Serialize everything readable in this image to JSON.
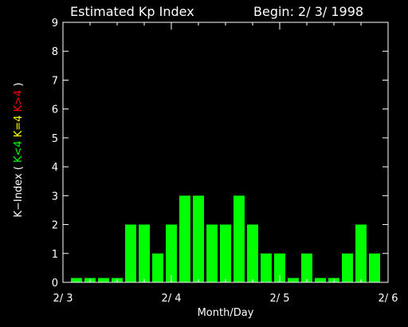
{
  "chart_data": {
    "type": "bar",
    "title": "Estimated Kp Index",
    "begin_label": "Begin: 2/ 3/ 1998",
    "xlabel": "Month/Day",
    "ylabel_parts": [
      {
        "text": "K−Index ( ",
        "color": "#ffffff"
      },
      {
        "text": "K<4 ",
        "color": "#00ff00"
      },
      {
        "text": "K=4 ",
        "color": "#ffff00"
      },
      {
        "text": "K>4",
        "color": "#ff0000"
      },
      {
        "text": " )",
        "color": "#ffffff"
      }
    ],
    "ylim": [
      0,
      9
    ],
    "yticks": [
      "0",
      "1",
      "2",
      "3",
      "4",
      "5",
      "6",
      "7",
      "8",
      "9"
    ],
    "xlim": [
      0,
      24
    ],
    "xticks": [
      {
        "pos": 0,
        "label": "2/ 3"
      },
      {
        "pos": 8,
        "label": "2/ 4"
      },
      {
        "pos": 16,
        "label": "2/ 5"
      },
      {
        "pos": 24,
        "label": "2/ 6"
      }
    ],
    "values": [
      0.15,
      0.15,
      0.15,
      0.15,
      2,
      2,
      1,
      2,
      3,
      3,
      2,
      2,
      3,
      2,
      1,
      1,
      0.15,
      1,
      0.15,
      0.15,
      1,
      2,
      1
    ],
    "bar_color": "#00ff00",
    "grid": false
  }
}
